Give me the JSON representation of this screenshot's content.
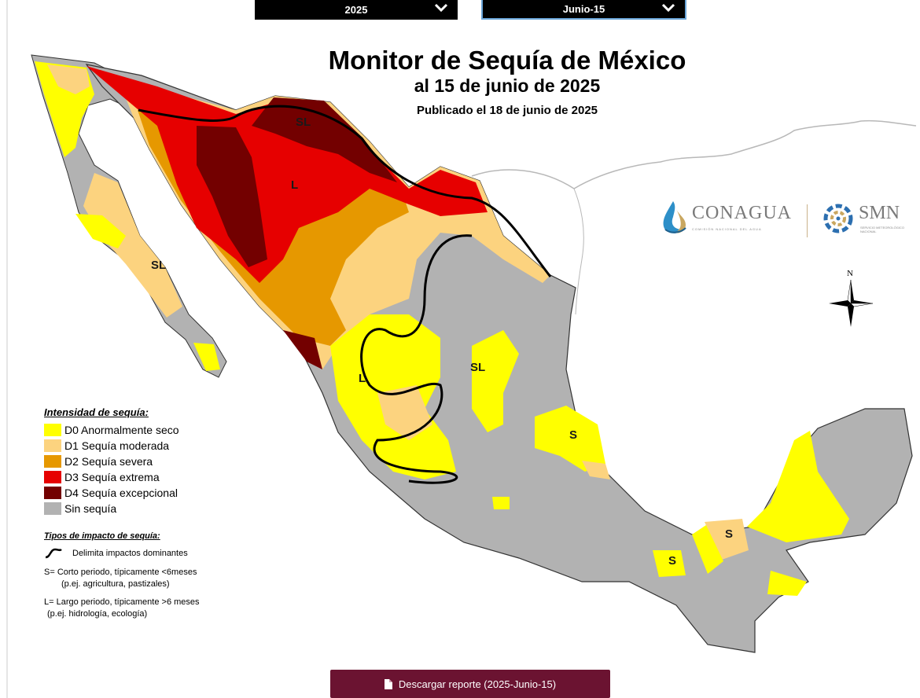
{
  "controls": {
    "year_value": "2025",
    "date_value": "Junio-15"
  },
  "map": {
    "title": "Monitor de Sequía de México",
    "subtitle": "al 15 de junio de 2025",
    "published": "Publicado el 18 de junio de 2025",
    "north_label": "N",
    "region_labels": [
      "SL",
      "L",
      "SL",
      "L",
      "SL",
      "S",
      "S",
      "S"
    ]
  },
  "logos": {
    "conagua_name": "CONAGUA",
    "conagua_tagline": "COMISIÓN NACIONAL DEL AGUA",
    "smn_name": "SMN",
    "smn_tagline": "SERVICIO METEOROLÓGICO NACIONAL"
  },
  "legend": {
    "title": "Intensidad de sequía:",
    "items": [
      {
        "label": "D0 Anormalmente seco",
        "color": "#ffff00"
      },
      {
        "label": "D1 Sequía moderada",
        "color": "#fcd37f"
      },
      {
        "label": "D2 Sequía severa",
        "color": "#e69800"
      },
      {
        "label": "D3 Sequía extrema",
        "color": "#e60000"
      },
      {
        "label": "D4 Sequía excepcional",
        "color": "#730000"
      },
      {
        "label": "Sin sequía",
        "color": "#b2b2b2"
      }
    ],
    "impact_title": "Tipos de impacto de sequía:",
    "impact_line_label": "Delimita impactos dominantes",
    "impact_s_line1": "S= Corto periodo, típicamente <6meses",
    "impact_s_line2": "(p.ej. agricultura, pastizales)",
    "impact_l_line1": "L= Largo periodo, típicamente >6 meses",
    "impact_l_line2": "(p.ej. hidrología, ecología)"
  },
  "download": {
    "label": "Descargar reporte (2025-Junio-15)"
  }
}
